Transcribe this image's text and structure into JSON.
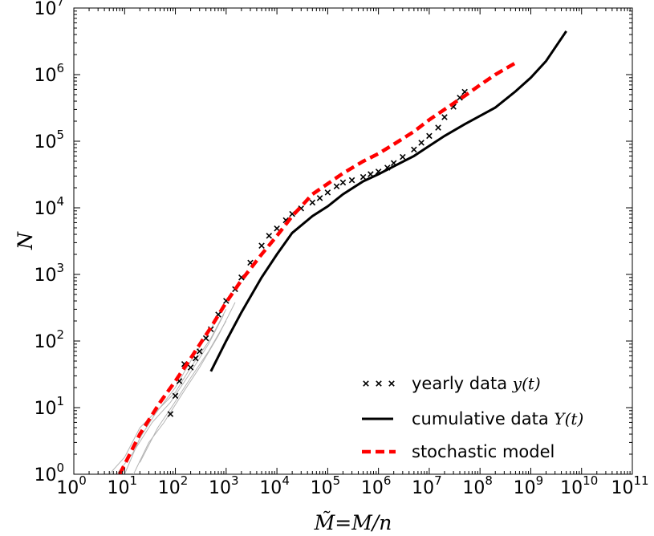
{
  "chart_data": {
    "type": "line",
    "xscale": "log",
    "yscale": "log",
    "xlim": [
      1,
      100000000000
    ],
    "ylim": [
      1,
      10000000
    ],
    "xlabel": "M̃=M/n",
    "ylabel": "N",
    "x_ticks": [
      {
        "base": "10",
        "exp": "0"
      },
      {
        "base": "10",
        "exp": "1"
      },
      {
        "base": "10",
        "exp": "2"
      },
      {
        "base": "10",
        "exp": "3"
      },
      {
        "base": "10",
        "exp": "4"
      },
      {
        "base": "10",
        "exp": "5"
      },
      {
        "base": "10",
        "exp": "6"
      },
      {
        "base": "10",
        "exp": "7"
      },
      {
        "base": "10",
        "exp": "8"
      },
      {
        "base": "10",
        "exp": "9"
      },
      {
        "base": "10",
        "exp": "10"
      },
      {
        "base": "10",
        "exp": "11"
      }
    ],
    "y_ticks": [
      {
        "base": "10",
        "exp": "0"
      },
      {
        "base": "10",
        "exp": "1"
      },
      {
        "base": "10",
        "exp": "2"
      },
      {
        "base": "10",
        "exp": "3"
      },
      {
        "base": "10",
        "exp": "4"
      },
      {
        "base": "10",
        "exp": "5"
      },
      {
        "base": "10",
        "exp": "6"
      },
      {
        "base": "10",
        "exp": "7"
      }
    ],
    "legend": {
      "placement": "lower-right",
      "entries": [
        {
          "label": "yearly data ",
          "math": "y(t)",
          "style": "crosses"
        },
        {
          "label": "cumulative data ",
          "math": "Y(t)",
          "style": "solid"
        },
        {
          "label": "stochastic model",
          "math": "",
          "style": "dashed"
        }
      ]
    },
    "series": [
      {
        "name": "cumulative data Y(t)",
        "style": "solid",
        "color": "#000000",
        "x": [
          500,
          1000,
          2000,
          5000,
          10000,
          20000,
          50000,
          100000,
          200000,
          500000,
          1000000,
          2000000,
          5000000,
          10000000,
          20000000,
          50000000,
          100000000,
          200000000,
          500000000,
          1000000000,
          2000000000,
          5000000000
        ],
        "y": [
          35,
          100,
          270,
          900,
          2000,
          4200,
          7500,
          10500,
          16000,
          25000,
          32000,
          42000,
          60000,
          85000,
          120000,
          180000,
          240000,
          320000,
          560000,
          900000,
          1600000,
          4500000
        ]
      },
      {
        "name": "stochastic model",
        "style": "dashed",
        "color": "#ff0000",
        "x": [
          8,
          10,
          20,
          50,
          100,
          200,
          500,
          1000,
          2000,
          5000,
          10000,
          20000,
          50000,
          100000,
          200000,
          500000,
          1000000,
          2000000,
          5000000,
          10000000,
          20000000,
          50000000,
          100000000,
          200000000,
          500000000
        ],
        "y": [
          1,
          1.4,
          4,
          12,
          25,
          55,
          160,
          380,
          820,
          2000,
          3800,
          7500,
          16000,
          23000,
          33000,
          50000,
          65000,
          90000,
          140000,
          210000,
          300000,
          480000,
          700000,
          1000000,
          1500000
        ]
      },
      {
        "name": "yearly data y(t)",
        "style": "crosses",
        "color": "#000000",
        "x": [
          80,
          100,
          120,
          150,
          200,
          250,
          300,
          400,
          500,
          700,
          1000,
          1500,
          2000,
          3000,
          5000,
          7000,
          10000,
          15000,
          20000,
          30000,
          50000,
          70000,
          100000,
          150000,
          200000,
          300000,
          500000,
          700000,
          1000000,
          1500000,
          2000000,
          3000000,
          5000000,
          7000000,
          10000000,
          15000000,
          20000000,
          30000000,
          40000000,
          50000000
        ],
        "y": [
          8,
          15,
          25,
          45,
          40,
          55,
          70,
          110,
          150,
          250,
          400,
          600,
          900,
          1500,
          2700,
          3800,
          4900,
          6500,
          8100,
          9800,
          12000,
          14000,
          17000,
          21000,
          24000,
          26000,
          29000,
          32000,
          35000,
          40000,
          47000,
          58000,
          75000,
          95000,
          120000,
          160000,
          230000,
          330000,
          450000,
          550000
        ]
      },
      {
        "name": "",
        "style": "thin-gray",
        "color": "#b4b4b4",
        "x": [
          5,
          10,
          20,
          50,
          100,
          200,
          500,
          1000
        ],
        "y": [
          1,
          1.8,
          5,
          10,
          17,
          40,
          110,
          300
        ]
      },
      {
        "name": "",
        "style": "thin-gray",
        "color": "#b4b4b4",
        "x": [
          10,
          20,
          40,
          100,
          200,
          500,
          1000
        ],
        "y": [
          1,
          3.5,
          8,
          20,
          50,
          150,
          420
        ]
      },
      {
        "name": "",
        "style": "thin-gray",
        "color": "#b4b4b4",
        "x": [
          15,
          30,
          60,
          150,
          300,
          700,
          1500
        ],
        "y": [
          1,
          3,
          6,
          18,
          40,
          120,
          380
        ]
      },
      {
        "name": "",
        "style": "thin-gray",
        "color": "#b4b4b4",
        "x": [
          7,
          14,
          35,
          80,
          180,
          450,
          900
        ],
        "y": [
          1,
          2,
          6,
          12,
          30,
          90,
          250
        ]
      },
      {
        "name": "",
        "style": "thin-gray",
        "color": "#b4b4b4",
        "x": [
          20,
          45,
          90,
          200,
          450,
          1000
        ],
        "y": [
          1.5,
          5,
          11,
          28,
          70,
          200
        ]
      }
    ]
  }
}
